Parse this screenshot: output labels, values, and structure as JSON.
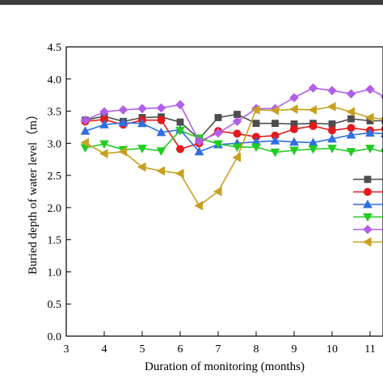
{
  "chart_data": {
    "type": "line",
    "xlabel": "Duration of monitoring (months)",
    "ylabel": "Buried depth of water level（m）",
    "xlim": [
      3,
      11.4
    ],
    "ylim": [
      0,
      4.5
    ],
    "x_ticks": [
      "3",
      "4",
      "5",
      "6",
      "7",
      "8",
      "9",
      "10",
      "11"
    ],
    "y_ticks": [
      "0.0",
      "0.5",
      "1.0",
      "1.5",
      "2.0",
      "2.5",
      "3.0",
      "3.5",
      "4.0",
      "4.5"
    ],
    "grid": false,
    "legend": "right",
    "series": [
      {
        "color": "#4d4d4d",
        "marker": "square",
        "points": [
          [
            3.5,
            3.36
          ],
          [
            4.0,
            3.42
          ],
          [
            4.5,
            3.34
          ],
          [
            5.0,
            3.4
          ],
          [
            5.5,
            3.41
          ],
          [
            6.0,
            3.33
          ],
          [
            6.5,
            3.07
          ],
          [
            7.0,
            3.4
          ],
          [
            7.5,
            3.45
          ],
          [
            8.0,
            3.31
          ],
          [
            8.5,
            3.31
          ],
          [
            9.0,
            3.3
          ],
          [
            9.5,
            3.31
          ],
          [
            10.0,
            3.3
          ],
          [
            10.5,
            3.38
          ],
          [
            11.0,
            3.35
          ],
          [
            11.4,
            3.35
          ]
        ]
      },
      {
        "color": "#e41a1c",
        "marker": "circle",
        "points": [
          [
            3.5,
            3.34
          ],
          [
            4.0,
            3.37
          ],
          [
            4.5,
            3.29
          ],
          [
            5.0,
            3.36
          ],
          [
            5.5,
            3.36
          ],
          [
            6.0,
            2.91
          ],
          [
            6.5,
            3.0
          ],
          [
            7.0,
            3.19
          ],
          [
            7.5,
            3.15
          ],
          [
            8.0,
            3.1
          ],
          [
            8.5,
            3.12
          ],
          [
            9.0,
            3.22
          ],
          [
            9.5,
            3.27
          ],
          [
            10.0,
            3.2
          ],
          [
            10.5,
            3.24
          ],
          [
            11.0,
            3.2
          ],
          [
            11.4,
            3.22
          ]
        ]
      },
      {
        "color": "#2f6fe0",
        "marker": "triangle-up",
        "points": [
          [
            3.5,
            3.19
          ],
          [
            4.0,
            3.29
          ],
          [
            4.5,
            3.32
          ],
          [
            5.0,
            3.31
          ],
          [
            5.5,
            3.17
          ],
          [
            6.0,
            3.21
          ],
          [
            6.5,
            2.87
          ],
          [
            7.0,
            2.98
          ],
          [
            7.5,
            3.0
          ],
          [
            8.0,
            3.02
          ],
          [
            8.5,
            3.04
          ],
          [
            9.0,
            3.02
          ],
          [
            9.5,
            3.01
          ],
          [
            10.0,
            3.07
          ],
          [
            10.5,
            3.13
          ],
          [
            11.0,
            3.16
          ],
          [
            11.4,
            3.15
          ]
        ]
      },
      {
        "color": "#22cc22",
        "marker": "triangle-down",
        "points": [
          [
            3.5,
            2.93
          ],
          [
            4.0,
            2.99
          ],
          [
            4.5,
            2.9
          ],
          [
            5.0,
            2.92
          ],
          [
            5.5,
            2.88
          ],
          [
            6.0,
            3.2
          ],
          [
            6.5,
            3.08
          ],
          [
            7.0,
            2.99
          ],
          [
            7.5,
            2.94
          ],
          [
            8.0,
            2.94
          ],
          [
            8.5,
            2.86
          ],
          [
            9.0,
            2.89
          ],
          [
            9.5,
            2.91
          ],
          [
            10.0,
            2.92
          ],
          [
            10.5,
            2.87
          ],
          [
            11.0,
            2.92
          ],
          [
            11.4,
            2.86
          ]
        ]
      },
      {
        "color": "#b25fe8",
        "marker": "diamond",
        "points": [
          [
            3.5,
            3.36
          ],
          [
            4.0,
            3.49
          ],
          [
            4.5,
            3.52
          ],
          [
            5.0,
            3.54
          ],
          [
            5.5,
            3.55
          ],
          [
            6.0,
            3.6
          ],
          [
            6.5,
            3.03
          ],
          [
            7.0,
            3.16
          ],
          [
            7.5,
            3.34
          ],
          [
            8.0,
            3.54
          ],
          [
            8.5,
            3.54
          ],
          [
            9.0,
            3.71
          ],
          [
            9.5,
            3.86
          ],
          [
            10.0,
            3.82
          ],
          [
            10.5,
            3.77
          ],
          [
            11.0,
            3.84
          ],
          [
            11.4,
            3.72
          ]
        ]
      },
      {
        "color": "#c8a020",
        "marker": "triangle-left",
        "points": [
          [
            3.5,
            3.01
          ],
          [
            4.0,
            2.84
          ],
          [
            4.5,
            2.87
          ],
          [
            5.0,
            2.63
          ],
          [
            5.5,
            2.57
          ],
          [
            6.0,
            2.53
          ],
          [
            6.5,
            2.03
          ],
          [
            7.0,
            2.25
          ],
          [
            7.5,
            2.78
          ],
          [
            8.0,
            3.52
          ],
          [
            8.5,
            3.51
          ],
          [
            9.0,
            3.53
          ],
          [
            9.5,
            3.52
          ],
          [
            10.0,
            3.57
          ],
          [
            10.5,
            3.49
          ],
          [
            11.0,
            3.4
          ],
          [
            11.4,
            3.37
          ]
        ]
      }
    ]
  }
}
